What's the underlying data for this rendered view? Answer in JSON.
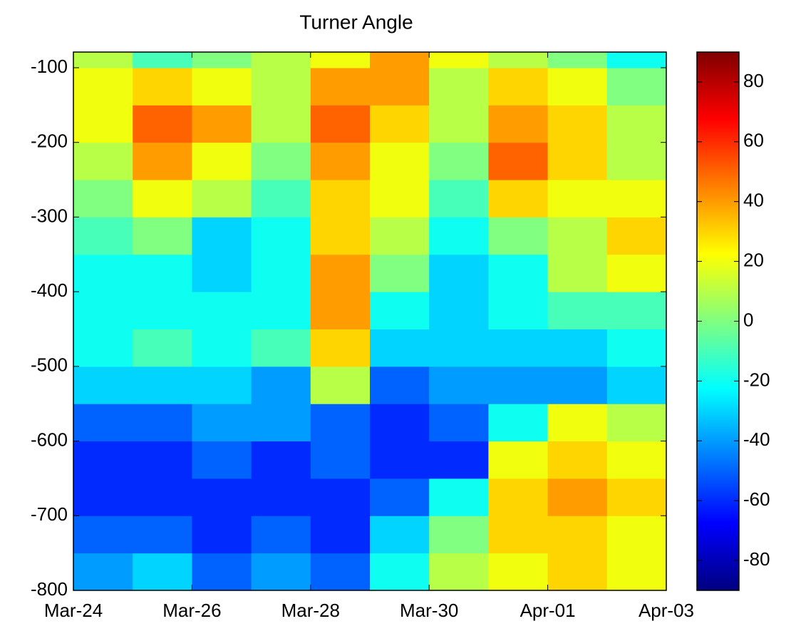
{
  "chart_data": {
    "type": "heatmap",
    "title": "Turner Angle",
    "x": [
      "Mar-24",
      "Mar-25",
      "Mar-26",
      "Mar-27",
      "Mar-28",
      "Mar-29",
      "Mar-30",
      "Mar-31",
      "Apr-01",
      "Apr-02",
      "Apr-03"
    ],
    "y": [
      -800,
      -750,
      -700,
      -650,
      -600,
      -550,
      -500,
      -450,
      -400,
      -350,
      -300,
      -250,
      -200,
      -150,
      -100,
      -79
    ],
    "values": [
      [
        -40,
        -30,
        -50,
        -40,
        -50,
        -20,
        10,
        20,
        30,
        20
      ],
      [
        -50,
        -50,
        -60,
        -50,
        -60,
        -30,
        0,
        30,
        30,
        20
      ],
      [
        -60,
        -60,
        -60,
        -60,
        -60,
        -50,
        -20,
        30,
        40,
        30
      ],
      [
        -60,
        -60,
        -50,
        -60,
        -50,
        -60,
        -60,
        20,
        30,
        20
      ],
      [
        -50,
        -50,
        -40,
        -40,
        -50,
        -60,
        -50,
        -20,
        20,
        10
      ],
      [
        -30,
        -30,
        -30,
        -40,
        10,
        -50,
        -40,
        -40,
        -40,
        -30
      ],
      [
        -20,
        -10,
        -20,
        -10,
        30,
        -30,
        -30,
        -30,
        -30,
        -20
      ],
      [
        -20,
        -20,
        -20,
        -20,
        40,
        -20,
        -30,
        -20,
        -10,
        -10
      ],
      [
        -20,
        -20,
        -30,
        -20,
        40,
        0,
        -30,
        -20,
        10,
        20
      ],
      [
        -10,
        0,
        -30,
        -20,
        30,
        10,
        -20,
        0,
        10,
        30
      ],
      [
        0,
        20,
        10,
        -10,
        30,
        20,
        -10,
        30,
        20,
        20
      ],
      [
        10,
        40,
        20,
        0,
        40,
        20,
        0,
        50,
        30,
        10
      ],
      [
        20,
        50,
        40,
        10,
        50,
        30,
        10,
        40,
        30,
        10
      ],
      [
        20,
        30,
        20,
        10,
        40,
        40,
        10,
        30,
        20,
        0
      ],
      [
        10,
        -10,
        0,
        10,
        20,
        40,
        20,
        10,
        0,
        -20
      ]
    ],
    "xlim": [
      "Mar-24",
      "Apr-03"
    ],
    "xticks": [
      "Mar-24",
      "Mar-26",
      "Mar-28",
      "Mar-30",
      "Apr-01",
      "Apr-03"
    ],
    "ylim": [
      -800,
      -79
    ],
    "yticks": [
      -800,
      -700,
      -600,
      -500,
      -400,
      -300,
      -200,
      -100
    ],
    "colormap": "jet",
    "clim": [
      -90,
      90
    ],
    "cticks": [
      -80,
      -60,
      -40,
      -20,
      0,
      20,
      40,
      60,
      80
    ]
  }
}
